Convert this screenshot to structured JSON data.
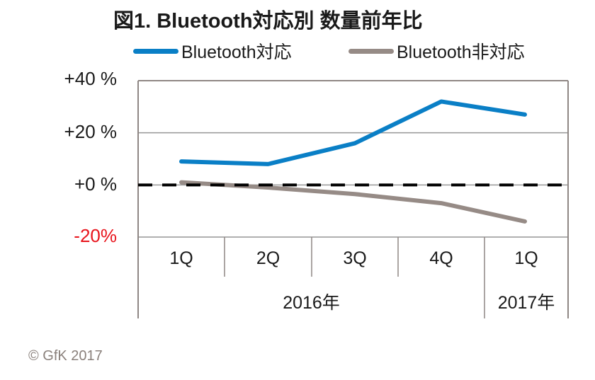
{
  "title": "図1. Bluetooth対応別 数量前年比",
  "legend": [
    {
      "label": "Bluetooth対応",
      "color": "#0a7fc6"
    },
    {
      "label": "Bluetooth非対応",
      "color": "#968b86"
    }
  ],
  "y_axis": {
    "ticks": [
      {
        "label": "+40 %",
        "value": 40,
        "color": "#1a1a1a"
      },
      {
        "label": "+20 %",
        "value": 20,
        "color": "#1a1a1a"
      },
      {
        "label": "+0 %",
        "value": 0,
        "color": "#1a1a1a"
      },
      {
        "label": "-20%",
        "value": -20,
        "color": "#e8141c"
      }
    ]
  },
  "x_axis": {
    "categories": [
      "1Q",
      "2Q",
      "3Q",
      "4Q",
      "1Q"
    ],
    "groups": [
      {
        "label": "2016年",
        "span": 4
      },
      {
        "label": "2017年",
        "span": 1
      }
    ]
  },
  "copyright": "© GfK 2017",
  "colors": {
    "grid": "#969696",
    "frame": "#8f8784",
    "zero_line": "#000000",
    "series_bt": "#0a7fc6",
    "series_nonbt": "#968b86",
    "negative_tick": "#e8141c"
  },
  "chart_data": {
    "type": "line",
    "title": "図1. Bluetooth対応別 数量前年比",
    "xlabel": "",
    "ylabel": "",
    "categories": [
      "1Q 2016",
      "2Q 2016",
      "3Q 2016",
      "4Q 2016",
      "1Q 2017"
    ],
    "series": [
      {
        "name": "Bluetooth対応",
        "color": "#0a7fc6",
        "values": [
          9,
          8,
          16,
          32,
          27
        ]
      },
      {
        "name": "Bluetooth非対応",
        "color": "#968b86",
        "values": [
          1,
          -1,
          -3.5,
          -7,
          -14
        ]
      }
    ],
    "ylim": [
      -20,
      40
    ],
    "yticks": [
      40,
      20,
      0,
      -20
    ],
    "ytick_labels": [
      "+40 %",
      "+20 %",
      "+0 %",
      "-20%"
    ],
    "grid": true,
    "zero_line": "dashed",
    "legend_position": "top"
  }
}
